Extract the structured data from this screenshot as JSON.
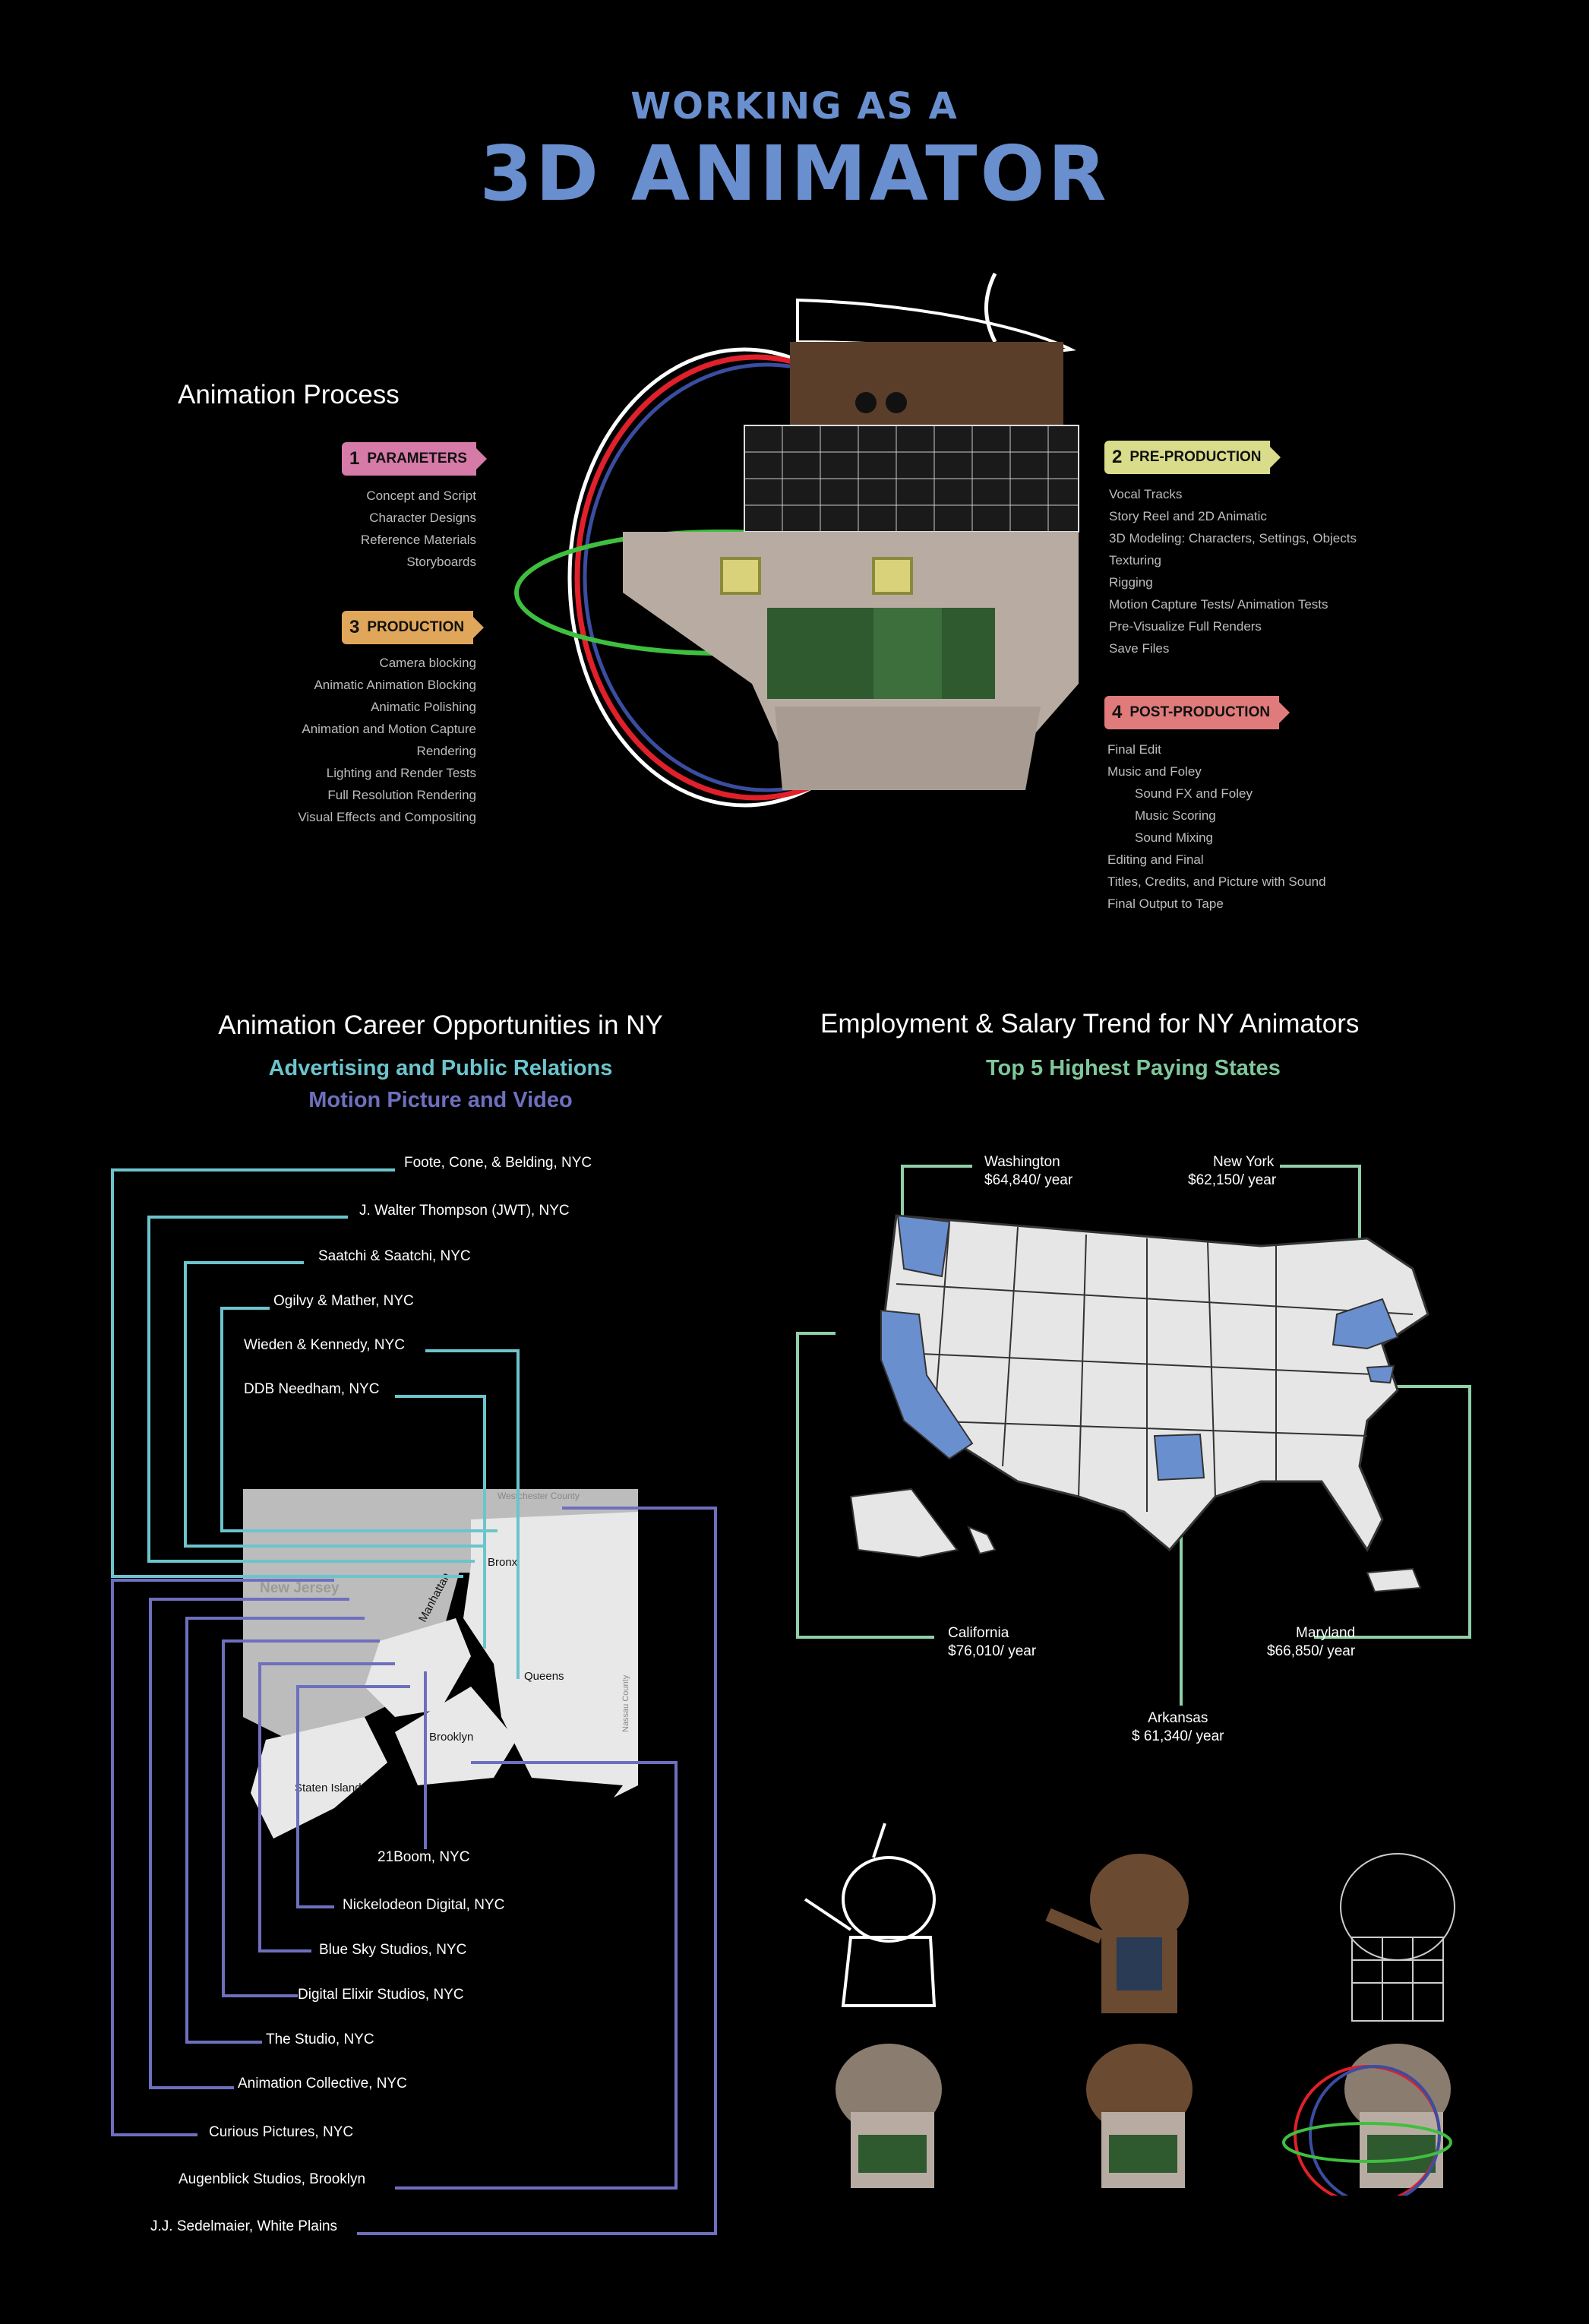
{
  "header": {
    "line1": "WORKING AS A",
    "line2": "3D ANIMATOR"
  },
  "process": {
    "title": "Animation Process",
    "stages": [
      {
        "num": "1",
        "label": "PARAMETERS",
        "color": "#d67aa8",
        "items": [
          "Concept and Script",
          "Character Designs",
          "Reference Materials",
          "Storyboards"
        ]
      },
      {
        "num": "2",
        "label": "PRE-PRODUCTION",
        "color": "#d9dc8a",
        "items": [
          "Vocal Tracks",
          "Story Reel and 2D Animatic",
          "3D Modeling: Characters, Settings, Objects",
          "Texturing",
          "Rigging",
          "Motion Capture Tests/ Animation Tests",
          "Pre-Visualize Full Renders",
          "Save Files"
        ]
      },
      {
        "num": "3",
        "label": "PRODUCTION",
        "color": "#e0a75a",
        "items": [
          "Camera blocking",
          "Animatic Animation Blocking",
          "Animatic Polishing",
          "Animation and Motion Capture",
          "Rendering",
          "Lighting and Render Tests",
          "Full Resolution Rendering",
          "Visual Effects and Compositing"
        ]
      },
      {
        "num": "4",
        "label": "POST-PRODUCTION",
        "color": "#e07b7b",
        "items": [
          "Final Edit",
          "Music and Foley",
          "Sound FX and Foley",
          "Music Scoring",
          "Sound Mixing",
          "Editing and Final",
          "Titles, Credits, and Picture with Sound",
          "Final Output to Tape"
        ]
      }
    ]
  },
  "careers": {
    "title": "Animation Career Opportunities in NY",
    "legend": [
      {
        "label": "Advertising and Public Relations",
        "color": "#6cc4cc"
      },
      {
        "label": "Motion Picture and Video",
        "color": "#6e6fbe"
      }
    ],
    "advertising": [
      "Foote, Cone, & Belding, NYC",
      "J. Walter Thompson (JWT), NYC",
      "Saatchi & Saatchi, NYC",
      "Ogilvy & Mather, NYC",
      "Wieden & Kennedy, NYC",
      "DDB Needham, NYC"
    ],
    "motion": [
      "21Boom, NYC",
      "Nickelodeon Digital, NYC",
      "Blue Sky Studios, NYC",
      "Digital Elixir Studios, NYC",
      "The Studio, NYC",
      "Animation Collective, NYC",
      "Curious Pictures, NYC",
      "Augenblick Studios, Brooklyn",
      "J.J. Sedelmaier, White Plains"
    ],
    "map_labels": [
      "New Jersey",
      "Westchester County",
      "Bronx",
      "Manhattan",
      "Queens",
      "Brooklyn",
      "Staten Island",
      "Nassau County"
    ]
  },
  "salary": {
    "title": "Employment & Salary Trend for NY Animators",
    "subtitle": "Top 5 Highest Paying States",
    "subtitle_color": "#7fc79a",
    "states": [
      {
        "name": "Washington",
        "salary": "$64,840/ year"
      },
      {
        "name": "New York",
        "salary": "$62,150/ year"
      },
      {
        "name": "California",
        "salary": "$76,010/ year"
      },
      {
        "name": "Maryland",
        "salary": "$66,850/ year"
      },
      {
        "name": "Arkansas",
        "salary": "$ 61,340/ year"
      }
    ]
  },
  "colors": {
    "title": "#6a8fcf",
    "highlight_state": "#6a8fcf",
    "map_fill": "#e6e6e6",
    "leader_green": "#8fd0a8"
  }
}
